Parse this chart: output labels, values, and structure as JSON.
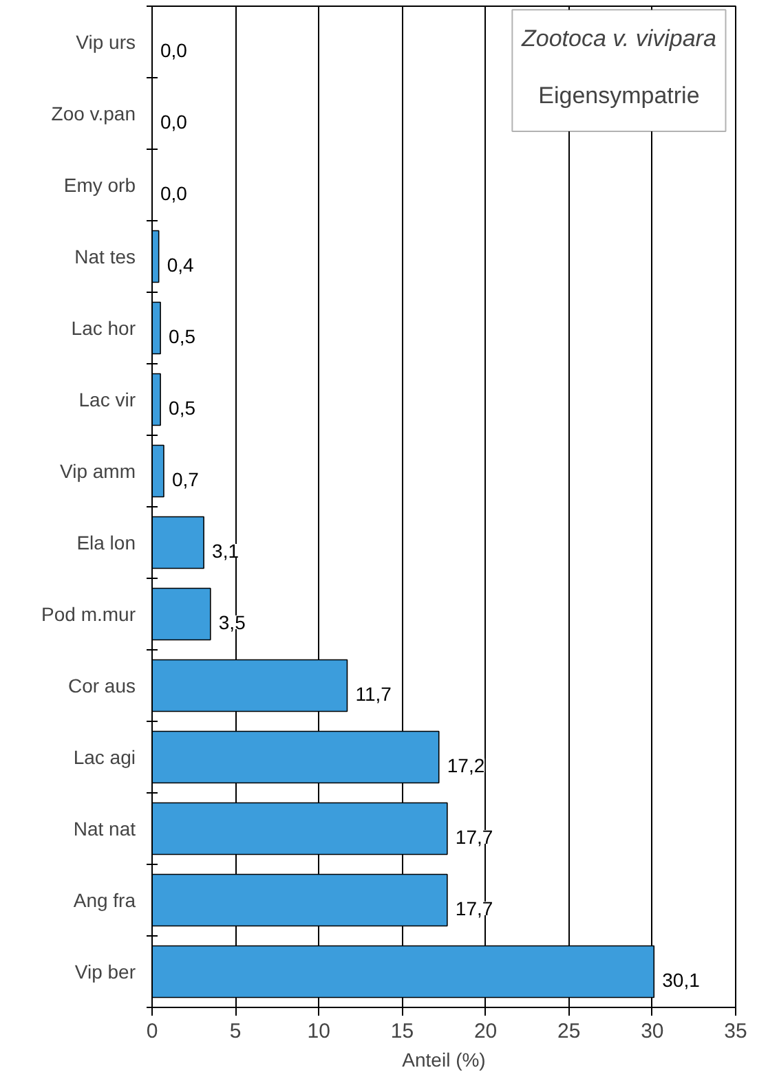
{
  "chart_data": {
    "type": "bar",
    "orientation": "horizontal",
    "title": "Zootoca v. vivipara",
    "subtitle": "Eigensympatrie",
    "xlabel": "Anteil (%)",
    "categories": [
      "Vip urs",
      "Zoo v.pan",
      "Emy orb",
      "Nat tes",
      "Lac hor",
      "Lac vir",
      "Vip amm",
      "Ela lon",
      "Pod m.mur",
      "Cor aus",
      "Lac agi",
      "Nat nat",
      "Ang fra",
      "Vip ber"
    ],
    "values": [
      0.0,
      0.0,
      0.0,
      0.4,
      0.5,
      0.5,
      0.7,
      3.1,
      3.5,
      11.7,
      17.2,
      17.7,
      17.7,
      30.1
    ],
    "value_labels": [
      "0,0",
      "0,0",
      "0,0",
      "0,4",
      "0,5",
      "0,5",
      "0,7",
      "3,1",
      "3,5",
      "11,7",
      "17,2",
      "17,7",
      "17,7",
      "30,1"
    ],
    "color": "#3c9ddc",
    "xlim": [
      0,
      35
    ],
    "xticks": [
      0,
      5,
      10,
      15,
      20,
      25,
      30,
      35
    ],
    "grid": "x"
  }
}
